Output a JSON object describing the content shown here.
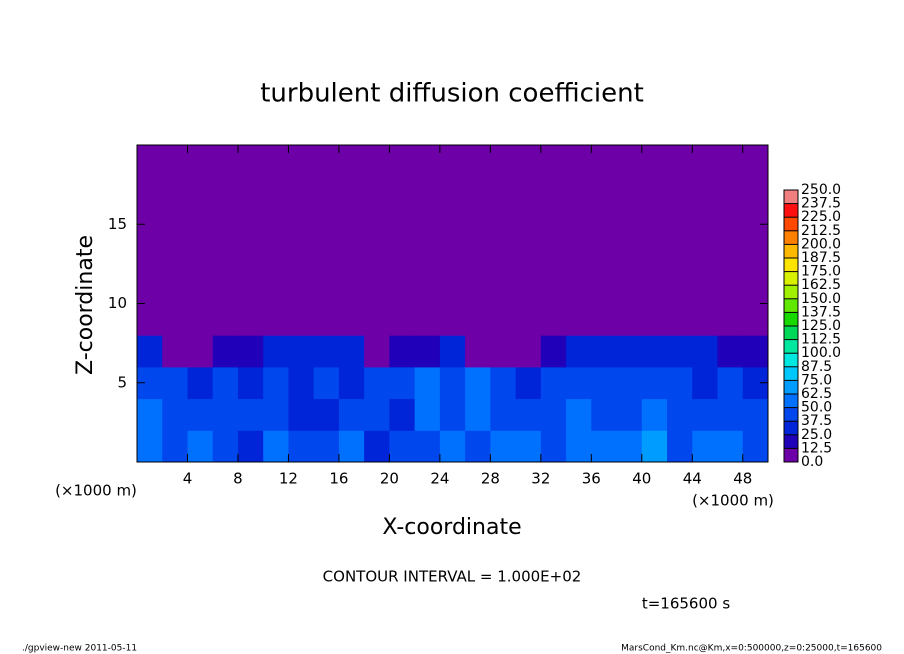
{
  "chart_data": {
    "type": "heatmap",
    "title": "turbulent diffusion coefficient",
    "x_label": "X-coordinate",
    "y_label": "Z-coordinate",
    "x_unit_label": "(×1000 m)",
    "y_unit_label": "(×1000 m)",
    "contour_note": "CONTOUR INTERVAL = 1.000E+02",
    "time_note": "t=165600 s",
    "footer_left": "./gpview-new  2011-05-11",
    "footer_right": "MarsCond_Km.nc@Km,x=0:500000,z=0:25000,t=165600",
    "xlim": [
      0,
      50
    ],
    "ylim": [
      0,
      20
    ],
    "xticks": [
      4,
      8,
      12,
      16,
      20,
      24,
      28,
      32,
      36,
      40,
      44,
      48
    ],
    "yticks": [
      5,
      10,
      15
    ],
    "x": [
      0,
      2,
      4,
      6,
      8,
      10,
      12,
      14,
      16,
      18,
      20,
      22,
      24,
      26,
      28,
      30,
      32,
      34,
      36,
      38,
      40,
      42,
      44,
      46,
      48,
      50
    ],
    "y": [
      0,
      2,
      4,
      6,
      8,
      20
    ],
    "values": [
      [
        55,
        45,
        60,
        40,
        35,
        50,
        45,
        40,
        55,
        35,
        40,
        45,
        50,
        45,
        55,
        50,
        45,
        60,
        55,
        50,
        65,
        45,
        55,
        50,
        45
      ],
      [
        50,
        45,
        40,
        45,
        40,
        45,
        35,
        30,
        45,
        40,
        30,
        50,
        45,
        55,
        45,
        40,
        45,
        50,
        40,
        45,
        55,
        45,
        40,
        45,
        40
      ],
      [
        45,
        40,
        30,
        40,
        35,
        40,
        35,
        40,
        30,
        40,
        45,
        50,
        45,
        55,
        45,
        30,
        40,
        45,
        40,
        40,
        45,
        40,
        35,
        40,
        35
      ],
      [
        25,
        10,
        5,
        15,
        20,
        30,
        25,
        30,
        25,
        10,
        15,
        20,
        30,
        10,
        10,
        5,
        20,
        35,
        30,
        25,
        30,
        25,
        25,
        20,
        20
      ],
      [
        0,
        0,
        0,
        0,
        0,
        0,
        0,
        0,
        0,
        0,
        0,
        0,
        0,
        0,
        0,
        0,
        0,
        0,
        0,
        0,
        0,
        0,
        0,
        0,
        0
      ]
    ],
    "colorbar": {
      "levels": [
        {
          "value": 0,
          "label": "0.0"
        },
        {
          "value": 12.5,
          "label": "12.5"
        },
        {
          "value": 25,
          "label": "25.0"
        },
        {
          "value": 37.5,
          "label": "37.5"
        },
        {
          "value": 50,
          "label": "50.0"
        },
        {
          "value": 62.5,
          "label": "62.5"
        },
        {
          "value": 75,
          "label": "75.0"
        },
        {
          "value": 87.5,
          "label": "87.5"
        },
        {
          "value": 100,
          "label": "100.0"
        },
        {
          "value": 112.5,
          "label": "112.5"
        },
        {
          "value": 125,
          "label": "125.0"
        },
        {
          "value": 137.5,
          "label": "137.5"
        },
        {
          "value": 150,
          "label": "150.0"
        },
        {
          "value": 162.5,
          "label": "162.5"
        },
        {
          "value": 175,
          "label": "175.0"
        },
        {
          "value": 187.5,
          "label": "187.5"
        },
        {
          "value": 200,
          "label": "200.0"
        },
        {
          "value": 212.5,
          "label": "212.5"
        },
        {
          "value": 225,
          "label": "225.0"
        },
        {
          "value": 237.5,
          "label": "237.5"
        },
        {
          "value": 250,
          "label": "250.0"
        }
      ],
      "colors": [
        "#6e00a8",
        "#2000b8",
        "#0024d8",
        "#0048ee",
        "#0070ff",
        "#009cff",
        "#00c8ff",
        "#00e8e0",
        "#00e8a0",
        "#00d858",
        "#18d800",
        "#60e800",
        "#a0f000",
        "#d8f000",
        "#ffe400",
        "#ffb800",
        "#ff8000",
        "#ff4800",
        "#ff1010",
        "#f08080"
      ]
    }
  }
}
